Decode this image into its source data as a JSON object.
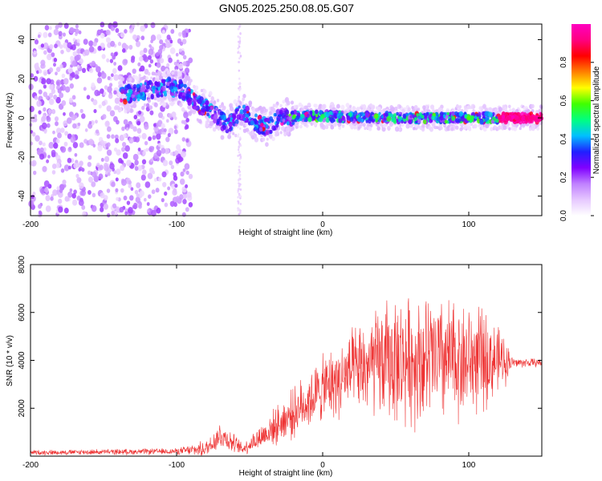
{
  "title": "GN05.2025.250.08.05.G07",
  "chart_data": [
    {
      "type": "heatmap",
      "name": "spectrogram",
      "xlabel": "Height of straight line (km)",
      "ylabel": "Frequency (Hz)",
      "xlim": [
        -200,
        150
      ],
      "ylim": [
        -50,
        48
      ],
      "xticks": [
        -200,
        -100,
        0,
        100
      ],
      "yticks": [
        -40,
        -20,
        0,
        20,
        40
      ],
      "colorbar": {
        "label": "Normalized spectral amplitude",
        "range": [
          0.0,
          1.0
        ],
        "ticks": [
          "0.0",
          "0.2",
          "0.4",
          "0.6",
          "0.8"
        ],
        "colors": [
          "#ffffff",
          "#e6c8ff",
          "#c080ff",
          "#8000ff",
          "#2020ff",
          "#00c0ff",
          "#00ff80",
          "#40ff00",
          "#ffff00",
          "#ff8000",
          "#ff0000",
          "#ff0080",
          "#ff00c0"
        ]
      },
      "ridge": [
        {
          "x": -135,
          "f": 12
        },
        {
          "x": -120,
          "f": 14
        },
        {
          "x": -105,
          "f": 16
        },
        {
          "x": -95,
          "f": 14
        },
        {
          "x": -85,
          "f": 7
        },
        {
          "x": -75,
          "f": 3
        },
        {
          "x": -65,
          "f": -4
        },
        {
          "x": -55,
          "f": 3
        },
        {
          "x": -45,
          "f": -3
        },
        {
          "x": -38,
          "f": -5
        },
        {
          "x": -30,
          "f": 0
        },
        {
          "x": -20,
          "f": 1
        },
        {
          "x": 0,
          "f": 1
        },
        {
          "x": 50,
          "f": 0
        },
        {
          "x": 100,
          "f": 0
        },
        {
          "x": 125,
          "f": 0
        },
        {
          "x": 150,
          "f": 0
        }
      ]
    },
    {
      "type": "line",
      "name": "snr",
      "xlabel": "Height of straight line (km)",
      "ylabel": "SNR (10 * v/v)",
      "xlim": [
        -200,
        150
      ],
      "ylim": [
        0,
        8000
      ],
      "xticks": [
        -200,
        -100,
        0,
        100
      ],
      "yticks": [
        2000,
        4000,
        6000,
        8000
      ],
      "color": "#ee3333",
      "envelope": [
        {
          "x": -200,
          "base": 150,
          "amp": 120
        },
        {
          "x": -100,
          "base": 200,
          "amp": 150
        },
        {
          "x": -80,
          "base": 300,
          "amp": 400
        },
        {
          "x": -70,
          "base": 900,
          "amp": 700
        },
        {
          "x": -55,
          "base": 300,
          "amp": 300
        },
        {
          "x": -40,
          "base": 900,
          "amp": 700
        },
        {
          "x": -20,
          "base": 1800,
          "amp": 1200
        },
        {
          "x": 0,
          "base": 2800,
          "amp": 1600
        },
        {
          "x": 20,
          "base": 3500,
          "amp": 2000
        },
        {
          "x": 45,
          "base": 4000,
          "amp": 3000
        },
        {
          "x": 80,
          "base": 4000,
          "amp": 3200
        },
        {
          "x": 110,
          "base": 4000,
          "amp": 2500
        },
        {
          "x": 125,
          "base": 4000,
          "amp": 1200
        },
        {
          "x": 130,
          "base": 3900,
          "amp": 250
        },
        {
          "x": 150,
          "base": 3900,
          "amp": 200
        }
      ]
    }
  ]
}
